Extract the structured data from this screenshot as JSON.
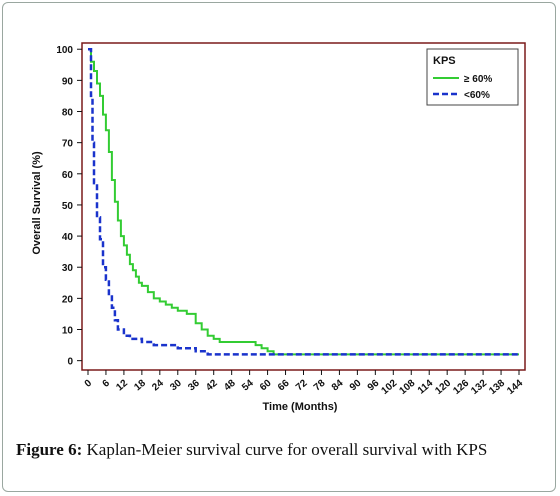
{
  "caption": {
    "label": "Figure 6:",
    "text": " Kaplan-Meier survival curve for overall survival with KPS"
  },
  "chart_data": {
    "type": "line",
    "step": true,
    "xlabel": "Time (Months)",
    "ylabel": "Overall Survival (%)",
    "xlim": [
      -2,
      146
    ],
    "ylim": [
      -3,
      102
    ],
    "xticks": [
      0,
      6,
      12,
      18,
      24,
      30,
      36,
      42,
      48,
      54,
      60,
      66,
      72,
      78,
      84,
      90,
      96,
      102,
      108,
      114,
      120,
      126,
      132,
      138,
      144
    ],
    "yticks": [
      0,
      10,
      20,
      30,
      40,
      50,
      60,
      70,
      80,
      90,
      100
    ],
    "legend": {
      "title": "KPS",
      "position": "top-right"
    },
    "frame_color": "#7a1a1a",
    "series": [
      {
        "name": "≥ 60%",
        "color": "#33cc33",
        "dash": "solid",
        "x": [
          0,
          1,
          2,
          3,
          4,
          5,
          6,
          7,
          8,
          9,
          10,
          11,
          12,
          13,
          14,
          15,
          16,
          17,
          18,
          20,
          22,
          24,
          26,
          28,
          30,
          33,
          36,
          38,
          40,
          42,
          44,
          48,
          52,
          56,
          58,
          60,
          62,
          64,
          144
        ],
        "y": [
          100,
          96,
          93,
          89,
          85,
          79,
          74,
          67,
          58,
          51,
          45,
          40,
          37,
          34,
          31,
          29,
          27,
          25,
          24,
          22,
          20,
          19,
          18,
          17,
          16,
          15,
          12,
          10,
          8,
          7,
          6,
          6,
          6,
          5,
          4,
          3,
          2,
          2,
          2
        ]
      },
      {
        "name": "<60%",
        "color": "#1a33cc",
        "dash": "dashed",
        "x": [
          0,
          1,
          1.5,
          2,
          3,
          4,
          5,
          6,
          7,
          8,
          9,
          10,
          12,
          14,
          18,
          22,
          30,
          36,
          40,
          144
        ],
        "y": [
          100,
          85,
          70,
          57,
          46,
          39,
          30,
          26,
          21,
          17,
          13,
          10,
          8,
          7,
          6,
          5,
          4,
          3,
          2,
          2
        ]
      }
    ]
  }
}
